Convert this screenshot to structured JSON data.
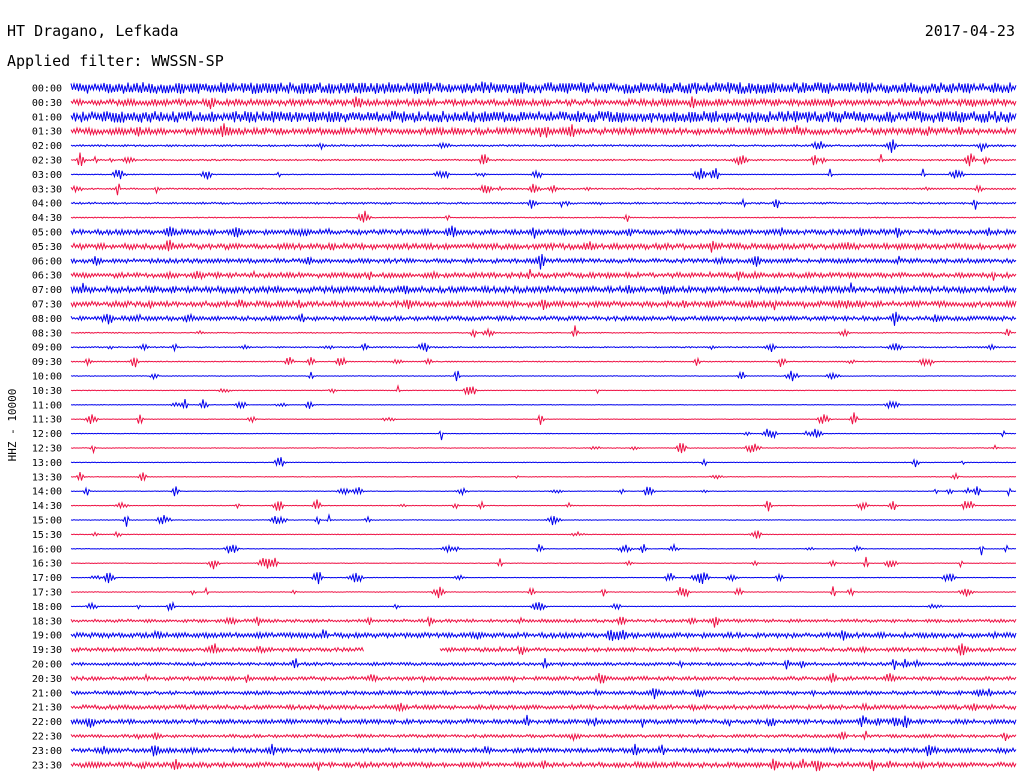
{
  "header": {
    "station": "HT Dragano, Lefkada",
    "date": "2017-04-23",
    "filter_prefix": "Applied filter:",
    "filter": "WWSSN-SP"
  },
  "chart_data": {
    "type": "line",
    "title": "HT Dragano, Lefkada",
    "ylabel": "HHZ - 10000",
    "colors": [
      "#0000ee",
      "#ee1144"
    ],
    "row_labels": [
      "00:00",
      "00:30",
      "01:00",
      "01:30",
      "02:00",
      "02:30",
      "03:00",
      "03:30",
      "04:00",
      "04:30",
      "05:00",
      "05:30",
      "06:00",
      "06:30",
      "07:00",
      "07:30",
      "08:00",
      "08:30",
      "09:00",
      "09:30",
      "10:00",
      "10:30",
      "11:00",
      "11:30",
      "12:00",
      "12:30",
      "13:00",
      "13:30",
      "14:00",
      "14:30",
      "15:00",
      "15:30",
      "16:00",
      "16:30",
      "17:00",
      "17:30",
      "18:00",
      "18:30",
      "19:00",
      "19:30",
      "20:00",
      "20:30",
      "21:00",
      "21:30",
      "22:00",
      "22:30",
      "23:00",
      "23:30"
    ],
    "noise_level": [
      0.9,
      0.5,
      0.9,
      0.5,
      0.15,
      0.12,
      0.06,
      0.12,
      0.15,
      0.08,
      0.4,
      0.45,
      0.35,
      0.4,
      0.5,
      0.45,
      0.35,
      0.08,
      0.1,
      0.08,
      0.05,
      0.05,
      0.05,
      0.05,
      0.05,
      0.05,
      0.05,
      0.05,
      0.05,
      0.05,
      0.05,
      0.05,
      0.05,
      0.05,
      0.05,
      0.05,
      0.05,
      0.25,
      0.4,
      0.3,
      0.25,
      0.3,
      0.3,
      0.35,
      0.35,
      0.25,
      0.35,
      0.4
    ],
    "data_gap": {
      "row": "19:30",
      "from_min": 9.3,
      "to_min": 11.7
    }
  }
}
